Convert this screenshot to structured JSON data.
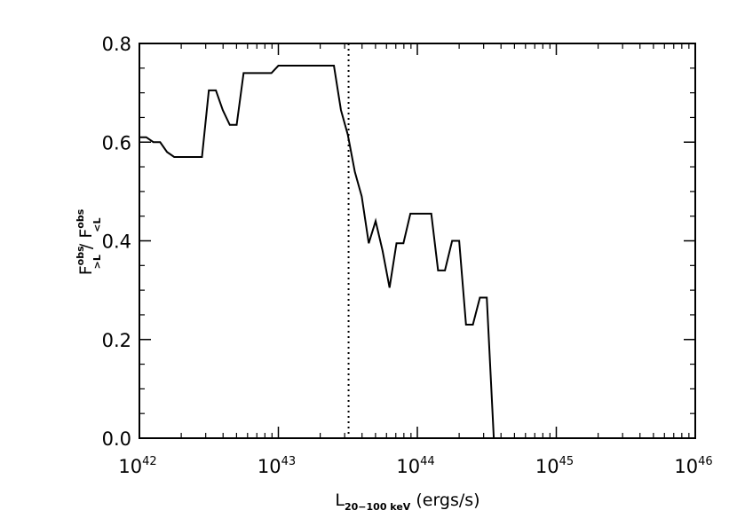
{
  "chart_data": {
    "type": "line",
    "x_scale": "log",
    "xlim": [
      1e+42,
      1e+46
    ],
    "ylim": [
      0.0,
      0.8
    ],
    "grid": false,
    "x_tick_labels": [
      {
        "base": "10",
        "exp": "42",
        "value": 1e+42
      },
      {
        "base": "10",
        "exp": "43",
        "value": 1e+43
      },
      {
        "base": "10",
        "exp": "44",
        "value": 1e+44
      },
      {
        "base": "10",
        "exp": "45",
        "value": 1e+45
      },
      {
        "base": "10",
        "exp": "46",
        "value": 1e+46
      }
    ],
    "y_ticks": [
      0.0,
      0.2,
      0.4,
      0.6,
      0.8
    ],
    "y_tick_labels": [
      "0.0",
      "0.2",
      "0.4",
      "0.6",
      "0.8"
    ],
    "xlabel": {
      "main": "L",
      "sub": "20−100 keV",
      "rest": " (ergs/s)"
    },
    "ylabel": {
      "f1": "F",
      "f1_sup": "obs",
      "f1_sub": ">L",
      "sep": " / ",
      "f2": "F",
      "f2_sup": "obs",
      "f2_sub": "<L"
    },
    "vline": {
      "x": 3.2e+43,
      "style": "dotted"
    },
    "series": [
      {
        "x": [
          1e+42,
          1.12e+42,
          1.26e+42,
          1.41e+42,
          1.58e+42,
          1.78e+42,
          2e+42,
          2.24e+42,
          2.51e+42,
          2.82e+42,
          3.16e+42,
          3.55e+42,
          3.98e+42,
          4.47e+42,
          5.01e+42,
          5.62e+42,
          6.31e+42,
          7.08e+42,
          7.94e+42,
          8.91e+42,
          1e+43,
          1.12e+43,
          1.26e+43,
          1.41e+43,
          1.58e+43,
          1.78e+43,
          2e+43,
          2.24e+43,
          2.51e+43,
          2.82e+43,
          3.16e+43,
          3.55e+43,
          3.98e+43,
          4.47e+43,
          5.01e+43,
          5.62e+43,
          6.31e+43,
          7.08e+43,
          7.94e+43,
          8.91e+43,
          1e+44,
          1.12e+44,
          1.26e+44,
          1.41e+44,
          1.58e+44,
          1.78e+44,
          2e+44,
          2.24e+44,
          2.51e+44,
          2.82e+44,
          3.16e+44,
          3.55e+44,
          3.98e+44,
          4.47e+44,
          5.01e+44,
          5.62e+44,
          6.31e+44
        ],
        "y": [
          0.61,
          0.61,
          0.6,
          0.6,
          0.58,
          0.57,
          0.57,
          0.57,
          0.57,
          0.57,
          0.705,
          0.705,
          0.665,
          0.635,
          0.635,
          0.74,
          0.74,
          0.74,
          0.74,
          0.74,
          0.755,
          0.755,
          0.755,
          0.755,
          0.755,
          0.755,
          0.755,
          0.755,
          0.755,
          0.665,
          0.615,
          0.54,
          0.49,
          0.395,
          0.44,
          0.38,
          0.305,
          0.395,
          0.395,
          0.455,
          0.455,
          0.455,
          0.455,
          0.34,
          0.34,
          0.4,
          0.4,
          0.23,
          0.23,
          0.285,
          0.285,
          0.0,
          0.0,
          0.0,
          0.0,
          0.0,
          0.0
        ]
      }
    ]
  }
}
